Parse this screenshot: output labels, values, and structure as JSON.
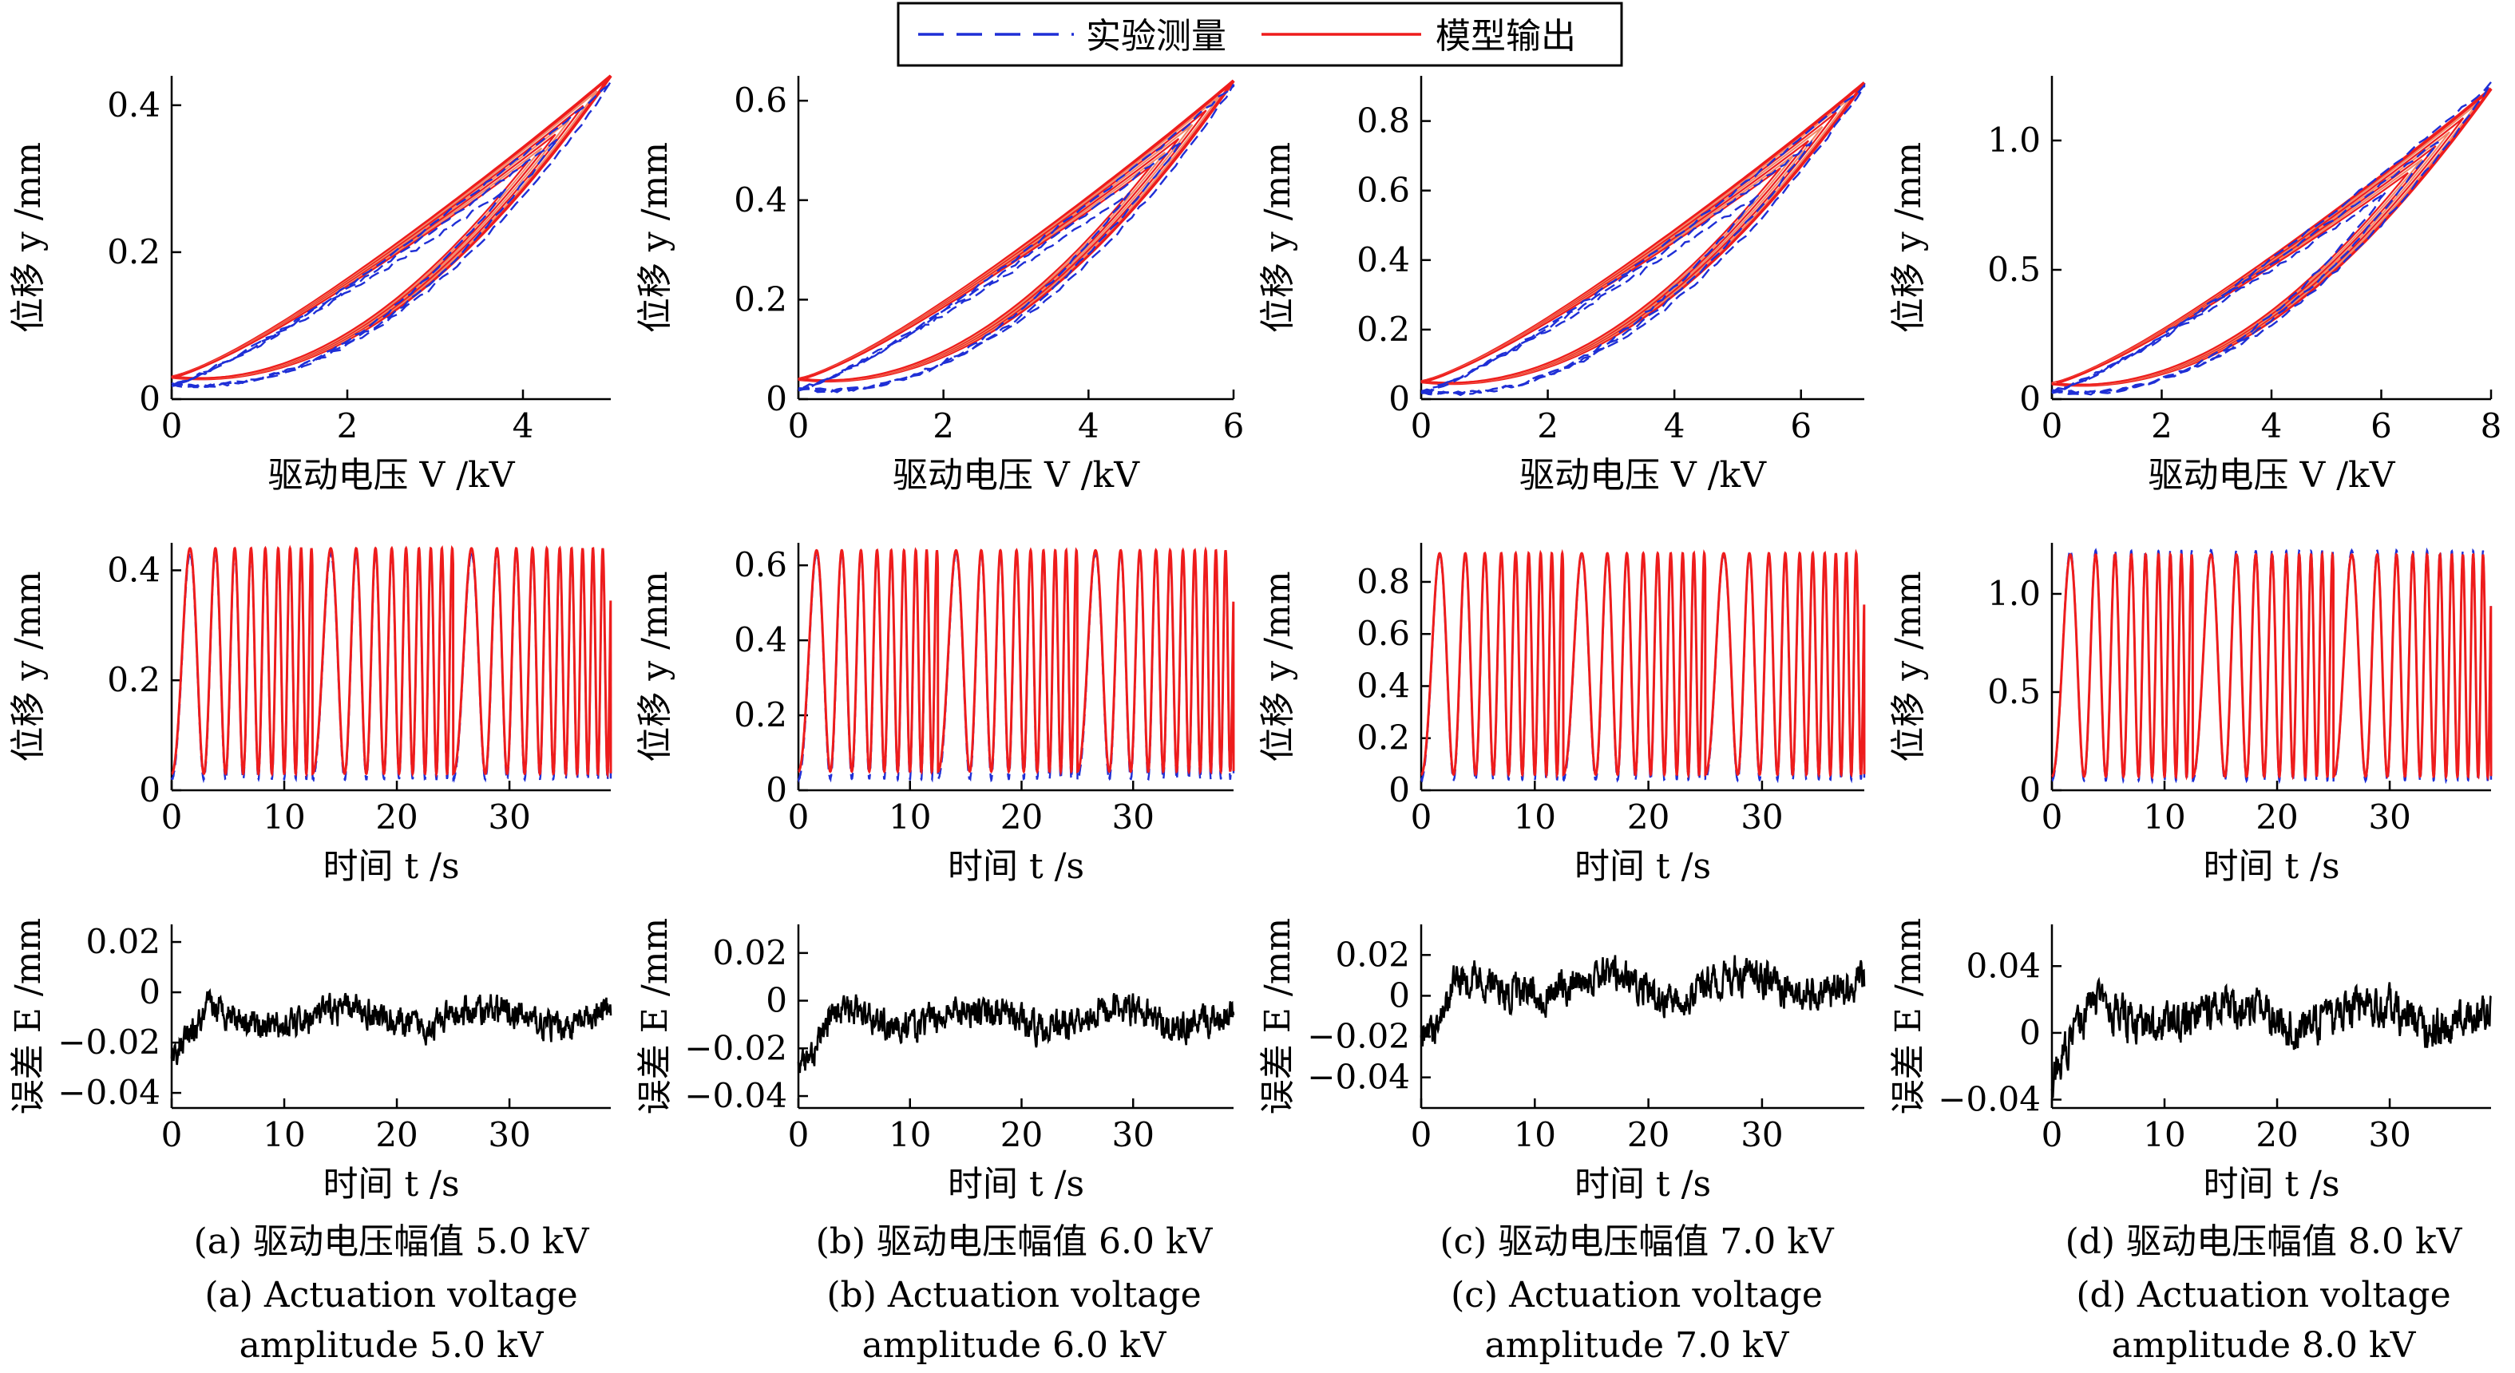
{
  "colors": {
    "measured": "#1f2fd6",
    "model": "#ee1c1c",
    "model_light": "#f28a6a",
    "error": "#000000",
    "axis": "#000000"
  },
  "legend": {
    "measured_label": "实验测量",
    "model_label": "模型输出"
  },
  "labels": {
    "y_disp": "位移 y /mm",
    "y_err": "误差 E /mm",
    "x_voltage": "驱动电压 V /kV",
    "x_time": "时间 t /s"
  },
  "captions": [
    {
      "zh": "(a) 驱动电压幅值 5.0 kV",
      "en1": "(a) Actuation voltage",
      "en2": "amplitude 5.0 kV"
    },
    {
      "zh": "(b) 驱动电压幅值 6.0 kV",
      "en1": "(b) Actuation voltage",
      "en2": "amplitude 6.0 kV"
    },
    {
      "zh": "(c) 驱动电压幅值 7.0 kV",
      "en1": "(c) Actuation voltage",
      "en2": "amplitude 7.0 kV"
    },
    {
      "zh": "(d) 驱动电压幅值 8.0 kV",
      "en1": "(d) Actuation voltage",
      "en2": "amplitude 8.0 kV"
    }
  ],
  "chart_data": [
    {
      "type": "line",
      "panel": "a-hysteresis",
      "xlabel": "驱动电压 V /kV",
      "ylabel": "位移 y /mm",
      "xlim": [
        0,
        5
      ],
      "ylim": [
        0,
        0.44
      ],
      "xticks": [
        0,
        2,
        4
      ],
      "yticks": [
        0,
        0.2,
        0.4
      ],
      "series": [
        {
          "name": "实验测量",
          "vmax": 5.0,
          "ymax": 0.43,
          "ymin": 0.02
        },
        {
          "name": "模型输出",
          "vmax": 5.0,
          "ymax": 0.44,
          "ymin": 0.03
        }
      ]
    },
    {
      "type": "line",
      "panel": "b-hysteresis",
      "xlabel": "驱动电压 V /kV",
      "ylabel": "位移 y /mm",
      "xlim": [
        0,
        6
      ],
      "ylim": [
        0,
        0.65
      ],
      "xticks": [
        0,
        2,
        4,
        6
      ],
      "yticks": [
        0,
        0.2,
        0.4,
        0.6
      ],
      "series": [
        {
          "name": "实验测量",
          "vmax": 6.0,
          "ymax": 0.63,
          "ymin": 0.02
        },
        {
          "name": "模型输出",
          "vmax": 6.0,
          "ymax": 0.64,
          "ymin": 0.04
        }
      ]
    },
    {
      "type": "line",
      "panel": "c-hysteresis",
      "xlabel": "驱动电压 V /kV",
      "ylabel": "位移 y /mm",
      "xlim": [
        0,
        7
      ],
      "ylim": [
        0,
        0.93
      ],
      "xticks": [
        0,
        2,
        4,
        6
      ],
      "yticks": [
        0,
        0.2,
        0.4,
        0.6,
        0.8
      ],
      "series": [
        {
          "name": "实验测量",
          "vmax": 7.0,
          "ymax": 0.9,
          "ymin": 0.02
        },
        {
          "name": "模型输出",
          "vmax": 7.0,
          "ymax": 0.91,
          "ymin": 0.05
        }
      ]
    },
    {
      "type": "line",
      "panel": "d-hysteresis",
      "xlabel": "驱动电压 V /kV",
      "ylabel": "位移 y /mm",
      "xlim": [
        0,
        8
      ],
      "ylim": [
        0,
        1.25
      ],
      "xticks": [
        0,
        2,
        4,
        6,
        8
      ],
      "yticks": [
        0,
        0.5,
        1.0
      ],
      "ytick_labels": [
        "0",
        "0.5",
        "1.0"
      ],
      "series": [
        {
          "name": "实验测量",
          "vmax": 8.0,
          "ymax": 1.22,
          "ymin": 0.03
        },
        {
          "name": "模型输出",
          "vmax": 8.0,
          "ymax": 1.2,
          "ymin": 0.06
        }
      ]
    },
    {
      "type": "line",
      "panel": "a-displacement",
      "xlabel": "时间 t /s",
      "ylabel": "位移 y /mm",
      "xlim": [
        0,
        39
      ],
      "ylim": [
        0,
        0.45
      ],
      "xticks": [
        0,
        10,
        20,
        30
      ],
      "yticks": [
        0,
        0.2,
        0.4
      ],
      "series": [
        {
          "name": "实验测量",
          "peak": 0.43,
          "trough": 0.02
        },
        {
          "name": "模型输出",
          "peak": 0.44,
          "trough": 0.03
        }
      ]
    },
    {
      "type": "line",
      "panel": "b-displacement",
      "xlabel": "时间 t /s",
      "ylabel": "位移 y /mm",
      "xlim": [
        0,
        39
      ],
      "ylim": [
        0,
        0.66
      ],
      "xticks": [
        0,
        10,
        20,
        30
      ],
      "yticks": [
        0,
        0.2,
        0.4,
        0.6
      ],
      "series": [
        {
          "name": "实验测量",
          "peak": 0.63,
          "trough": 0.03
        },
        {
          "name": "模型输出",
          "peak": 0.64,
          "trough": 0.05
        }
      ]
    },
    {
      "type": "line",
      "panel": "c-displacement",
      "xlabel": "时间 t /s",
      "ylabel": "位移 y /mm",
      "xlim": [
        0,
        39
      ],
      "ylim": [
        0,
        0.95
      ],
      "xticks": [
        0,
        10,
        20,
        30
      ],
      "yticks": [
        0,
        0.2,
        0.4,
        0.6,
        0.8
      ],
      "series": [
        {
          "name": "实验测量",
          "peak": 0.9,
          "trough": 0.04
        },
        {
          "name": "模型输出",
          "peak": 0.91,
          "trough": 0.06
        }
      ]
    },
    {
      "type": "line",
      "panel": "d-displacement",
      "xlabel": "时间 t /s",
      "ylabel": "位移 y /mm",
      "xlim": [
        0,
        39
      ],
      "ylim": [
        0,
        1.26
      ],
      "xticks": [
        0,
        10,
        20,
        30
      ],
      "yticks": [
        0,
        0.5,
        1.0
      ],
      "ytick_labels": [
        "0",
        "0.5",
        "1.0"
      ],
      "series": [
        {
          "name": "实验测量",
          "peak": 1.22,
          "trough": 0.05
        },
        {
          "name": "模型输出",
          "peak": 1.2,
          "trough": 0.07
        }
      ]
    },
    {
      "type": "line",
      "panel": "a-error",
      "xlabel": "时间 t /s",
      "ylabel": "误差 E /mm",
      "xlim": [
        0,
        39
      ],
      "ylim": [
        -0.046,
        0.027
      ],
      "xticks": [
        0,
        10,
        20,
        30
      ],
      "yticks": [
        0.02,
        0,
        -0.02,
        -0.04
      ],
      "ytick_labels": [
        "0.02",
        "0",
        "−0.02",
        "−0.04"
      ],
      "series": [
        {
          "name": "误差",
          "mean": -0.01,
          "amplitude": 0.01,
          "start": -0.025
        }
      ]
    },
    {
      "type": "line",
      "panel": "b-error",
      "xlabel": "时间 t /s",
      "ylabel": "误差 E /mm",
      "xlim": [
        0,
        39
      ],
      "ylim": [
        -0.045,
        0.032
      ],
      "xticks": [
        0,
        10,
        20,
        30
      ],
      "yticks": [
        0.02,
        0,
        -0.02,
        -0.04
      ],
      "ytick_labels": [
        "0.02",
        "0",
        "−0.02",
        "−0.04"
      ],
      "series": [
        {
          "name": "误差",
          "mean": -0.007,
          "amplitude": 0.011,
          "start": -0.03
        }
      ]
    },
    {
      "type": "line",
      "panel": "c-error",
      "xlabel": "时间 t /s",
      "ylabel": "误差 E /mm",
      "xlim": [
        0,
        39
      ],
      "ylim": [
        -0.055,
        0.035
      ],
      "xticks": [
        0,
        10,
        20,
        30
      ],
      "yticks": [
        0.02,
        0,
        -0.02,
        -0.04
      ],
      "ytick_labels": [
        "0.02",
        "0",
        "−0.02",
        "−0.04"
      ],
      "series": [
        {
          "name": "误差",
          "mean": 0.005,
          "amplitude": 0.015,
          "start": -0.025
        }
      ]
    },
    {
      "type": "line",
      "panel": "d-error",
      "xlabel": "时间 t /s",
      "ylabel": "误差 E /mm",
      "xlim": [
        0,
        39
      ],
      "ylim": [
        -0.045,
        0.065
      ],
      "xticks": [
        0,
        10,
        20,
        30
      ],
      "yticks": [
        0.04,
        0,
        -0.04
      ],
      "ytick_labels": [
        "0.04",
        "0",
        "−0.04"
      ],
      "series": [
        {
          "name": "误差",
          "mean": 0.01,
          "amplitude": 0.02,
          "start": -0.025
        }
      ]
    }
  ]
}
